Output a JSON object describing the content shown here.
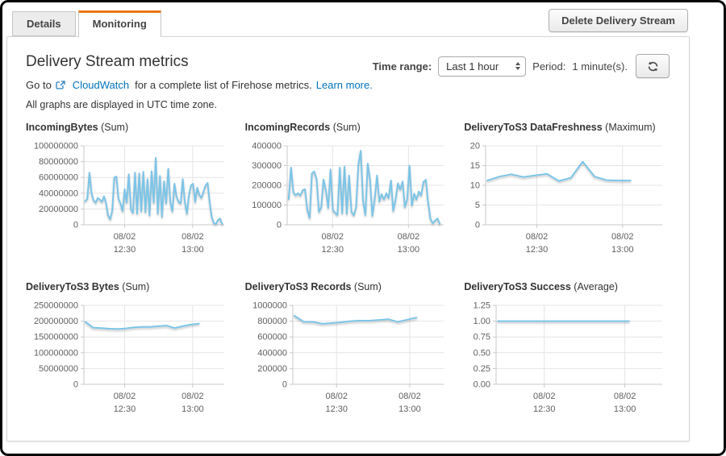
{
  "tabs": [
    {
      "label": "Details",
      "active": false
    },
    {
      "label": "Monitoring",
      "active": true
    }
  ],
  "actions": {
    "delete_button": "Delete Delivery Stream"
  },
  "header": {
    "title": "Delivery Stream metrics",
    "goto_prefix": "Go to",
    "cloudwatch_link": "CloudWatch",
    "goto_suffix": "for a complete list of Firehose metrics.",
    "learn_more_link": "Learn more.",
    "utc_note": "All graphs are displayed in UTC time zone."
  },
  "controls": {
    "time_range_label": "Time range:",
    "time_range_value": "Last 1 hour",
    "period_label": "Period:",
    "period_value": "1 minute(s)."
  },
  "colors": {
    "accent_orange": "#e8770f",
    "link_blue": "#0073bb",
    "line_blue": "#7cc5e8",
    "grid_line": "#e4e4e4",
    "axis_line": "#c9c9c9",
    "tick_text": "#5f5f5f"
  },
  "chart_data": [
    {
      "id": "incoming-bytes",
      "type": "line",
      "title": "IncomingBytes",
      "stat": "(Sum)",
      "ylim": [
        0,
        100000000
      ],
      "yticks": [
        "0",
        "20000000",
        "40000000",
        "60000000",
        "80000000",
        "100000000"
      ],
      "x_ticks": [
        {
          "pos": 0.29,
          "line1": "08/02",
          "line2": "12:30"
        },
        {
          "pos": 0.775,
          "line1": "08/02",
          "line2": "13:00"
        }
      ],
      "x_start": 0.01,
      "x_end": 0.985,
      "values": [
        30000000,
        33000000,
        66000000,
        40000000,
        31000000,
        28000000,
        34000000,
        32000000,
        29000000,
        36000000,
        28000000,
        12000000,
        7000000,
        18000000,
        60000000,
        61000000,
        33000000,
        27000000,
        17000000,
        45000000,
        28000000,
        64000000,
        20000000,
        15000000,
        66000000,
        14000000,
        65000000,
        17000000,
        67000000,
        16000000,
        58000000,
        12000000,
        68000000,
        28000000,
        85000000,
        14000000,
        62000000,
        10000000,
        55000000,
        27000000,
        71000000,
        29000000,
        17000000,
        52000000,
        36000000,
        29000000,
        27000000,
        58000000,
        29000000,
        14000000,
        38000000,
        50000000,
        52000000,
        29000000,
        47000000,
        38000000,
        34000000,
        42000000,
        50000000,
        53000000,
        28000000,
        10000000,
        2000000,
        1000000,
        6000000,
        8000000,
        1000000
      ]
    },
    {
      "id": "incoming-records",
      "type": "line",
      "title": "IncomingRecords",
      "stat": "(Sum)",
      "ylim": [
        0,
        400000
      ],
      "yticks": [
        "0",
        "100000",
        "200000",
        "300000",
        "400000"
      ],
      "x_ticks": [
        {
          "pos": 0.29,
          "line1": "08/02",
          "line2": "12:30"
        },
        {
          "pos": 0.775,
          "line1": "08/02",
          "line2": "13:00"
        }
      ],
      "x_start": 0.01,
      "x_end": 0.975,
      "values": [
        130000,
        290000,
        165000,
        150000,
        160000,
        148000,
        175000,
        180000,
        75000,
        35000,
        260000,
        270000,
        230000,
        65000,
        90000,
        230000,
        175000,
        85000,
        280000,
        75000,
        60000,
        50000,
        290000,
        58000,
        295000,
        55000,
        250000,
        65000,
        48000,
        90000,
        305000,
        375000,
        120000,
        50000,
        310000,
        230000,
        45000,
        130000,
        250000,
        118000,
        155000,
        128000,
        160000,
        135000,
        225000,
        70000,
        128000,
        210000,
        178000,
        220000,
        90000,
        128000,
        300000,
        98000,
        158000,
        128000,
        168000,
        148000,
        218000,
        228000,
        115000,
        30000,
        8000,
        22000,
        32000,
        5000
      ]
    },
    {
      "id": "delivery-to-s3-data-freshness",
      "type": "line",
      "title": "DeliveryToS3 DataFreshness",
      "stat": "(Maximum)",
      "ylim": [
        0,
        20
      ],
      "yticks": [
        "0",
        "5",
        "10",
        "15",
        "20"
      ],
      "x_ticks": [
        {
          "pos": 0.29,
          "line1": "08/02",
          "line2": "12:30"
        },
        {
          "pos": 0.775,
          "line1": "08/02",
          "line2": "13:00"
        }
      ],
      "x_start": 0.01,
      "x_end": 0.82,
      "values": [
        11.2,
        12.2,
        12.8,
        12.1,
        12.5,
        12.9,
        11.1,
        11.9,
        16,
        12.2,
        11.3,
        11.2,
        11.2
      ]
    },
    {
      "id": "delivery-to-s3-bytes",
      "type": "line",
      "title": "DeliveryToS3 Bytes",
      "stat": "(Sum)",
      "ylim": [
        0,
        250000000
      ],
      "yticks": [
        "0",
        "50000000",
        "100000000",
        "150000000",
        "200000000",
        "250000000"
      ],
      "x_ticks": [
        {
          "pos": 0.29,
          "line1": "08/02",
          "line2": "12:30"
        },
        {
          "pos": 0.775,
          "line1": "08/02",
          "line2": "13:00"
        }
      ],
      "x_start": 0.01,
      "x_end": 0.82,
      "values": [
        198000000,
        179000000,
        178000000,
        176000000,
        175000000,
        177000000,
        180000000,
        182000000,
        182000000,
        184000000,
        186000000,
        178000000,
        184000000,
        189000000,
        192000000
      ]
    },
    {
      "id": "delivery-to-s3-records",
      "type": "line",
      "title": "DeliveryToS3 Records",
      "stat": "(Sum)",
      "ylim": [
        0,
        1000000
      ],
      "yticks": [
        "0",
        "200000",
        "400000",
        "600000",
        "800000",
        "1000000"
      ],
      "x_ticks": [
        {
          "pos": 0.29,
          "line1": "08/02",
          "line2": "12:30"
        },
        {
          "pos": 0.775,
          "line1": "08/02",
          "line2": "13:00"
        }
      ],
      "x_start": 0.01,
      "x_end": 0.82,
      "values": [
        868000,
        792000,
        790000,
        766000,
        775000,
        786000,
        800000,
        806000,
        806000,
        815000,
        825000,
        790000,
        818000,
        845000
      ]
    },
    {
      "id": "delivery-to-s3-success",
      "type": "line",
      "title": "DeliveryToS3 Success",
      "stat": "(Average)",
      "ylim": [
        0,
        1.25
      ],
      "yticks": [
        "0.00",
        "0.25",
        "0.50",
        "0.75",
        "1.00",
        "1.25"
      ],
      "x_ticks": [
        {
          "pos": 0.29,
          "line1": "08/02",
          "line2": "12:30"
        },
        {
          "pos": 0.775,
          "line1": "08/02",
          "line2": "13:00"
        }
      ],
      "x_start": 0.01,
      "x_end": 0.8,
      "values": [
        1,
        1,
        1,
        1,
        1,
        1,
        1,
        1,
        1,
        1,
        1,
        1,
        1,
        1
      ]
    }
  ]
}
